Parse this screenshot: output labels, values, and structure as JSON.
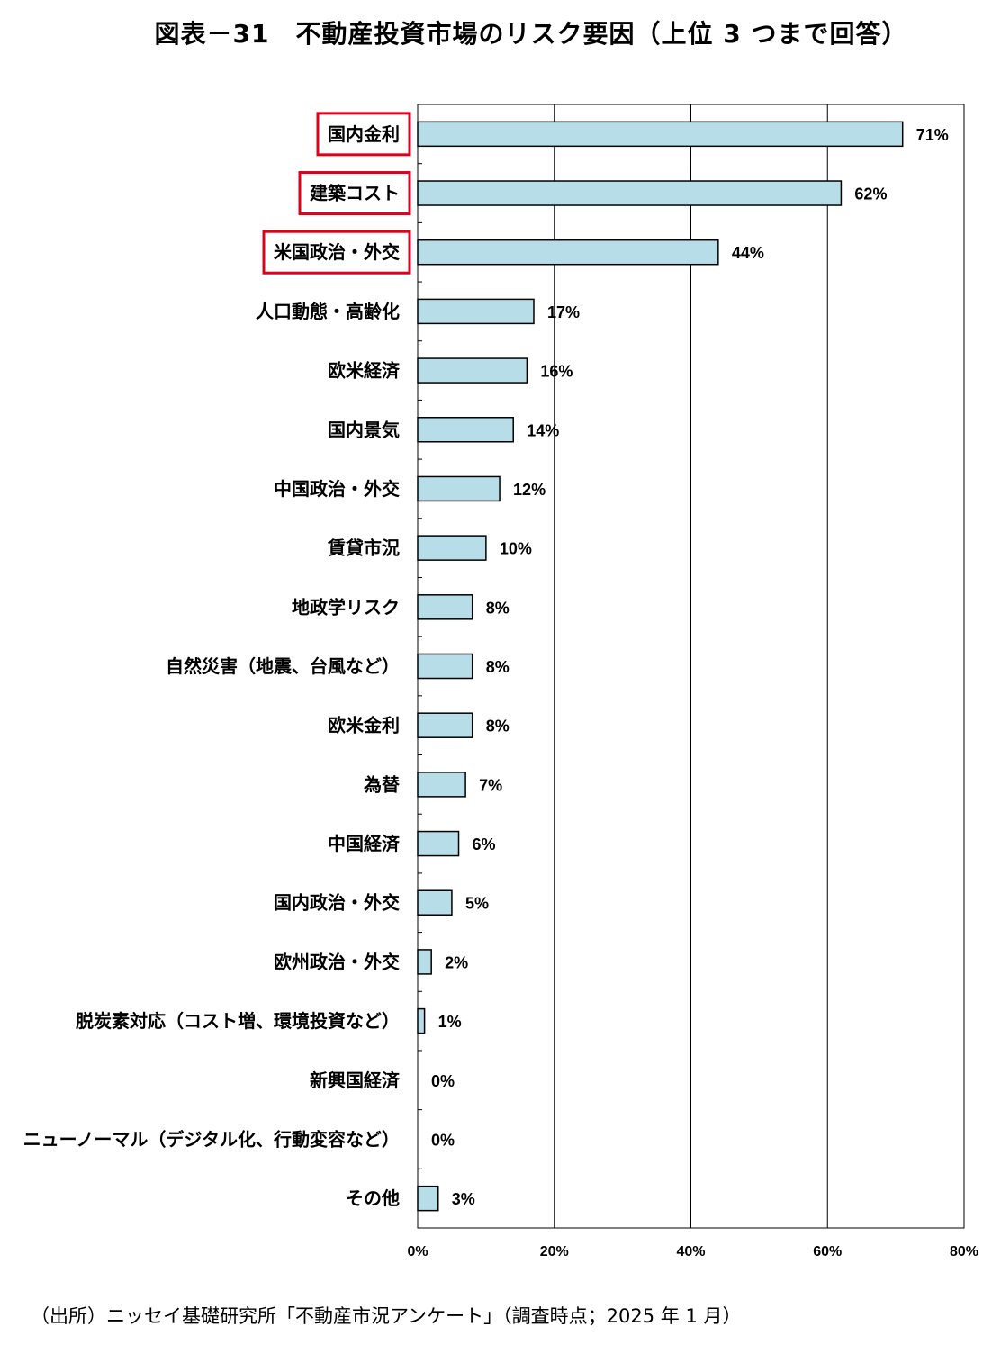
{
  "title": "図表－31　不動産投資市場のリスク要因（上位 3 つまで回答）",
  "source": "（出所）ニッセイ基礎研究所「不動産市況アンケート」（調査時点；2025 年 1 月）",
  "chart_data": {
    "type": "bar",
    "orientation": "horizontal",
    "categories": [
      "国内金利",
      "建築コスト",
      "米国政治・外交",
      "人口動態・高齢化",
      "欧米経済",
      "国内景気",
      "中国政治・外交",
      "賃貸市況",
      "地政学リスク",
      "自然災害（地震、台風など）",
      "欧米金利",
      "為替",
      "中国経済",
      "国内政治・外交",
      "欧州政治・外交",
      "脱炭素対応（コスト増、環境投資など）",
      "新興国経済",
      "ニューノーマル（デジタル化、行動変容など）",
      "その他"
    ],
    "values": [
      71,
      62,
      44,
      17,
      16,
      14,
      12,
      10,
      8,
      8,
      8,
      7,
      6,
      5,
      2,
      1,
      0,
      0,
      3
    ],
    "value_labels": [
      "71%",
      "62%",
      "44%",
      "17%",
      "16%",
      "14%",
      "12%",
      "10%",
      "8%",
      "8%",
      "8%",
      "7%",
      "6%",
      "5%",
      "2%",
      "1%",
      "0%",
      "0%",
      "3%"
    ],
    "xlim": [
      0,
      80
    ],
    "x_ticks": [
      "0%",
      "20%",
      "40%",
      "60%",
      "80%"
    ],
    "highlighted": [
      "国内金利",
      "建築コスト",
      "米国政治・外交"
    ],
    "grid": "vertical",
    "legend": "none",
    "colors": {
      "bar": "#b7dee8",
      "bar_edge": "#000000",
      "highlight": "#e0001b",
      "grid": "#000000"
    }
  }
}
